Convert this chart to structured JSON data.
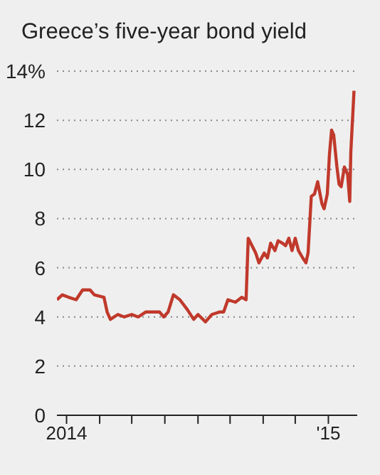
{
  "chart_data": {
    "type": "line",
    "title": "Greece’s five-year bond yield",
    "x": [
      "2014-04-22",
      "2014-04-27",
      "2014-05-03",
      "2014-05-10",
      "2014-05-16",
      "2014-05-23",
      "2014-05-27",
      "2014-06-05",
      "2014-06-08",
      "2014-06-11",
      "2014-06-18",
      "2014-06-24",
      "2014-07-01",
      "2014-07-07",
      "2014-07-14",
      "2014-07-20",
      "2014-07-27",
      "2014-07-31",
      "2014-08-04",
      "2014-08-09",
      "2014-08-15",
      "2014-08-22",
      "2014-08-28",
      "2014-09-01",
      "2014-09-08",
      "2014-09-14",
      "2014-09-21",
      "2014-09-25",
      "2014-09-29",
      "2014-10-06",
      "2014-10-12",
      "2014-10-16",
      "2014-10-18",
      "2014-10-25",
      "2014-10-28",
      "2014-11-02",
      "2014-11-05",
      "2014-11-08",
      "2014-11-12",
      "2014-11-15",
      "2014-11-19",
      "2014-11-22",
      "2014-11-25",
      "2014-11-28",
      "2014-12-01",
      "2014-12-04",
      "2014-12-08",
      "2014-12-11",
      "2014-12-13",
      "2014-12-16",
      "2014-12-19",
      "2014-12-22",
      "2014-12-26",
      "2014-12-28",
      "2014-12-31",
      "2015-01-02",
      "2015-01-04",
      "2015-01-06",
      "2015-01-09",
      "2015-01-11",
      "2015-01-13",
      "2015-01-16",
      "2015-01-19",
      "2015-01-21",
      "2015-01-22",
      "2015-01-25"
    ],
    "series": [
      {
        "color": "#c0392b",
        "values": [
          4.7,
          4.9,
          4.8,
          4.7,
          5.1,
          5.1,
          4.9,
          4.8,
          4.2,
          3.9,
          4.1,
          4.0,
          4.1,
          4.0,
          4.2,
          4.2,
          4.2,
          4.0,
          4.2,
          4.9,
          4.7,
          4.3,
          3.9,
          4.1,
          3.8,
          4.1,
          4.2,
          4.2,
          4.7,
          4.6,
          4.8,
          4.7,
          7.2,
          6.6,
          6.2,
          6.6,
          6.4,
          7.0,
          6.7,
          7.1,
          7.0,
          6.9,
          7.2,
          6.7,
          7.2,
          6.7,
          6.4,
          6.2,
          6.6,
          8.9,
          9.0,
          9.5,
          8.6,
          8.4,
          9.0,
          10.6,
          11.6,
          11.4,
          10.1,
          9.4,
          9.3,
          10.1,
          9.8,
          8.7,
          10.7,
          13.2
        ]
      }
    ],
    "xlim": [
      "2014-04-22",
      "2015-01-28"
    ],
    "xticks": [
      {
        "value": "2014-05-01",
        "label": "2014"
      },
      {
        "value": "2014-06-01",
        "label": null
      },
      {
        "value": "2014-07-01",
        "label": null
      },
      {
        "value": "2014-08-01",
        "label": null
      },
      {
        "value": "2014-09-01",
        "label": null
      },
      {
        "value": "2014-10-01",
        "label": null
      },
      {
        "value": "2014-11-01",
        "label": null
      },
      {
        "value": "2014-12-01",
        "label": null
      },
      {
        "value": "2015-01-01",
        "label": "'15"
      }
    ],
    "ylim": [
      0,
      14
    ],
    "yticks": [
      0,
      2,
      4,
      6,
      8,
      10,
      12,
      {
        "value": 14,
        "label": "14%"
      }
    ],
    "grid": "y",
    "marker": "none",
    "line_style": "solid"
  }
}
